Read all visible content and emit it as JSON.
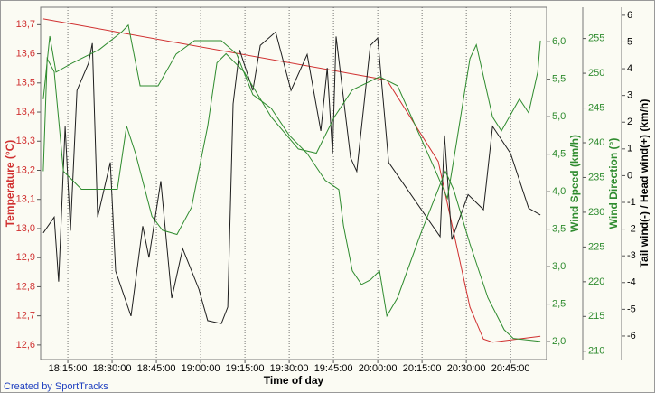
{
  "chart_data": {
    "type": "line",
    "xlabel": "Time of day",
    "xlim": [
      1085.8,
      1257.2
    ],
    "xticks": [
      {
        "value": 1095,
        "label": "18:15:00"
      },
      {
        "value": 1110,
        "label": "18:30:00"
      },
      {
        "value": 1125,
        "label": "18:45:00"
      },
      {
        "value": 1140,
        "label": "19:00:00"
      },
      {
        "value": 1155,
        "label": "19:15:00"
      },
      {
        "value": 1170,
        "label": "19:30:00"
      },
      {
        "value": 1185,
        "label": "19:45:00"
      },
      {
        "value": 1200,
        "label": "20:00:00"
      },
      {
        "value": 1215,
        "label": "20:15:00"
      },
      {
        "value": 1230,
        "label": "20:30:00"
      },
      {
        "value": 1245,
        "label": "20:45:00"
      }
    ],
    "grid": true,
    "ylabel": "Temperature (°C)",
    "ylim": [
      12.55,
      13.76
    ],
    "yticks": [
      {
        "value": 12.6,
        "label": "12,6"
      },
      {
        "value": 12.7,
        "label": "12,7"
      },
      {
        "value": 12.8,
        "label": "12,8"
      },
      {
        "value": 12.9,
        "label": "12,9"
      },
      {
        "value": 13.0,
        "label": "13,0"
      },
      {
        "value": 13.1,
        "label": "13,1"
      },
      {
        "value": 13.2,
        "label": "13,2"
      },
      {
        "value": 13.3,
        "label": "13,3"
      },
      {
        "value": 13.4,
        "label": "13,4"
      },
      {
        "value": 13.5,
        "label": "13,5"
      },
      {
        "value": 13.6,
        "label": "13,6"
      },
      {
        "value": 13.7,
        "label": "13,7"
      }
    ],
    "y2label": "Wind Speed (km/h)",
    "y2lim": [
      1.76,
      6.46
    ],
    "y2ticks": [
      {
        "value": 2.0,
        "label": "2,0"
      },
      {
        "value": 2.5,
        "label": "2,5"
      },
      {
        "value": 3.0,
        "label": "3,0"
      },
      {
        "value": 3.5,
        "label": "3,5"
      },
      {
        "value": 4.0,
        "label": "4,0"
      },
      {
        "value": 4.5,
        "label": "4,5"
      },
      {
        "value": 5.0,
        "label": "5,0"
      },
      {
        "value": 5.5,
        "label": "5,5"
      },
      {
        "value": 6.0,
        "label": "6,0"
      }
    ],
    "y3label": "Wind Direction (°)",
    "y3lim": [
      208.8,
      259.5
    ],
    "y3ticks": [
      210,
      215,
      220,
      225,
      230,
      235,
      240,
      245,
      250,
      255
    ],
    "y4label": "Tail wind(-) / Head wind(+) (km/h)",
    "y4lim": [
      -6.88,
      6.3
    ],
    "y4ticks": [
      -6,
      -5,
      -4,
      -3,
      -2,
      -1,
      0,
      1,
      2,
      3,
      4,
      5,
      6
    ],
    "series": [
      {
        "axis": "y",
        "color": "#d03030",
        "x": [
          1086.7,
          1203.1,
          1220.5,
          1231.2,
          1235.8,
          1238.9,
          1255.1
        ],
        "values": [
          13.72,
          13.51,
          13.23,
          12.73,
          12.62,
          12.61,
          12.63
        ]
      },
      {
        "axis": "y2",
        "color": "#1e1e1e",
        "x": [
          1086.7,
          1090.4,
          1091.9,
          1094.1,
          1095.9,
          1098.1,
          1102.0,
          1103.3,
          1105.1,
          1109.4,
          1111.2,
          1116.4,
          1120.4,
          1122.5,
          1126.5,
          1130.2,
          1133.9,
          1139.4,
          1142.4,
          1147.0,
          1149.2,
          1151.0,
          1153.2,
          1157.7,
          1160.2,
          1165.4,
          1170.6,
          1176.1,
          1180.7,
          1182.9,
          1184.7,
          1185.9,
          1190.8,
          1192.9,
          1197.5,
          1200.0,
          1203.7,
          1221.1,
          1222.6,
          1225.1,
          1230.6,
          1235.8,
          1238.9,
          1245.0,
          1251.1,
          1255.1
        ],
        "values": [
          3.45,
          3.66,
          2.8,
          4.87,
          3.48,
          5.35,
          5.71,
          5.98,
          3.66,
          4.39,
          2.94,
          2.34,
          3.54,
          3.12,
          4.14,
          2.58,
          3.24,
          2.7,
          2.28,
          2.24,
          2.46,
          5.17,
          5.89,
          5.35,
          5.95,
          6.13,
          5.35,
          5.83,
          4.81,
          5.65,
          4.51,
          6.07,
          4.45,
          4.27,
          5.95,
          6.05,
          4.39,
          3.4,
          4.75,
          3.36,
          3.96,
          3.76,
          4.87,
          4.51,
          3.78,
          3.69
        ]
      },
      {
        "axis": "y3",
        "color": "#2e8b2e",
        "x": [
          1086.7,
          1088.0,
          1090.4,
          1093.5,
          1099.6,
          1111.8,
          1114.9,
          1117.9,
          1123.5,
          1127.1,
          1132.0,
          1136.9,
          1142.4,
          1145.5,
          1148.6,
          1154.7,
          1163.9,
          1173.1,
          1179.2,
          1185.3,
          1191.4,
          1200.6,
          1206.7,
          1219.0,
          1223.6,
          1226.6,
          1231.2,
          1233.4,
          1238.9,
          1241.9,
          1248.0,
          1251.1,
          1254.2,
          1255.1
        ],
        "values": [
          235.9,
          252.1,
          250.2,
          235.9,
          233.3,
          233.3,
          242.4,
          238.5,
          229.4,
          227.4,
          226.8,
          230.7,
          242.4,
          251.5,
          252.8,
          250.2,
          243.7,
          239.1,
          238.5,
          243.7,
          247.6,
          249.5,
          248.2,
          236.5,
          232.0,
          239.8,
          252.1,
          254.1,
          243.7,
          241.7,
          246.3,
          244.3,
          250.2,
          254.7
        ]
      },
      {
        "axis": "y4",
        "color": "#2e8b2e",
        "x": [
          1086.7,
          1088.9,
          1091.0,
          1096.5,
          1105.7,
          1113.4,
          1115.5,
          1119.5,
          1125.6,
          1131.7,
          1137.9,
          1147.0,
          1152.2,
          1157.7,
          1163.9,
          1170.0,
          1176.1,
          1182.2,
          1186.8,
          1188.4,
          1191.4,
          1194.5,
          1197.5,
          1200.6,
          1203.1,
          1206.7,
          1214.4,
          1222.9,
          1225.7,
          1231.2,
          1237.3,
          1242.8,
          1245.9,
          1255.1
        ],
        "values": [
          2.86,
          5.22,
          3.87,
          4.21,
          4.72,
          5.39,
          5.63,
          3.36,
          3.36,
          4.55,
          5.05,
          5.05,
          4.55,
          3.03,
          2.52,
          1.51,
          0.83,
          -0.18,
          -0.52,
          -1.87,
          -3.56,
          -4.07,
          -3.9,
          -3.56,
          -5.25,
          -4.57,
          -2.21,
          0.16,
          -0.52,
          -2.55,
          -4.57,
          -5.76,
          -6.09,
          -6.2
        ]
      }
    ]
  },
  "credit": "Created by SportTracks"
}
